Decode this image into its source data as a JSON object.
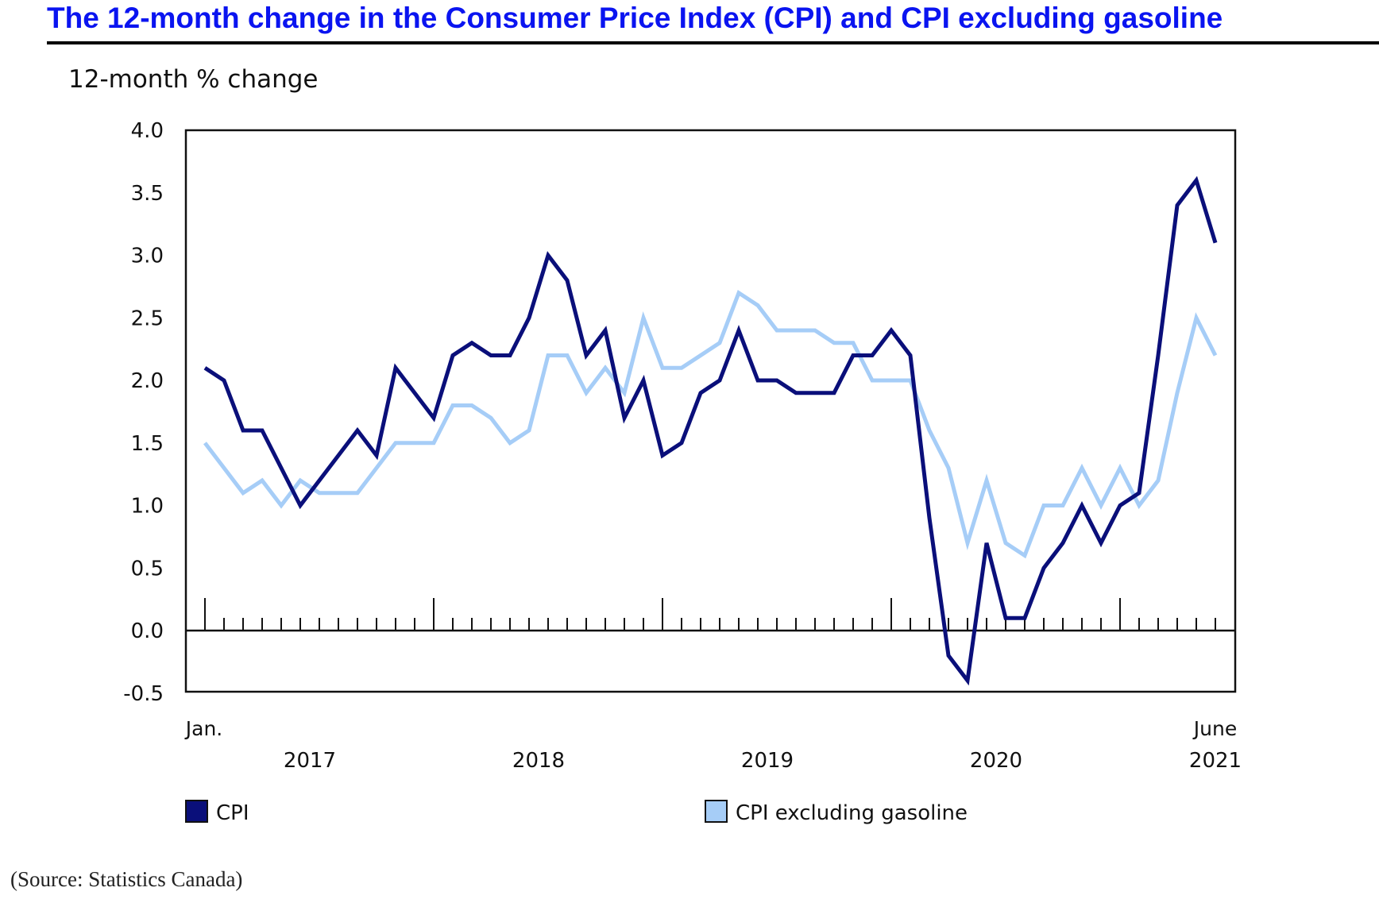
{
  "title": "The 12-month change in the Consumer Price Index (CPI) and CPI excluding gasoline",
  "source": "(Source: Statistics Canada)",
  "chart_data": {
    "type": "line",
    "ylabel": "12-month % change",
    "ylim": [
      -0.5,
      4.0
    ],
    "yticks": [
      "4.0",
      "3.5",
      "3.0",
      "2.5",
      "2.0",
      "1.5",
      "1.0",
      "0.5",
      "0.0",
      "-0.5"
    ],
    "ytick_values": [
      4.0,
      3.5,
      3.0,
      2.5,
      2.0,
      1.5,
      1.0,
      0.5,
      0.0,
      -0.5
    ],
    "x_start": "Jan. 2017",
    "x_end": "June 2021",
    "x_start_label": "Jan.",
    "x_end_label": "June",
    "year_labels": [
      "2017",
      "2018",
      "2019",
      "2020",
      "2021"
    ],
    "legend_position": "bottom",
    "grid": false,
    "series": [
      {
        "name": "CPI",
        "color": "#0a0f7a",
        "values": [
          2.1,
          2.0,
          1.6,
          1.6,
          1.3,
          1.0,
          1.2,
          1.4,
          1.6,
          1.4,
          2.1,
          1.9,
          1.7,
          2.2,
          2.3,
          2.2,
          2.2,
          2.5,
          3.0,
          2.8,
          2.2,
          2.4,
          1.7,
          2.0,
          1.4,
          1.5,
          1.9,
          2.0,
          2.4,
          2.0,
          2.0,
          1.9,
          1.9,
          1.9,
          2.2,
          2.2,
          2.4,
          2.2,
          0.9,
          -0.2,
          -0.4,
          0.7,
          0.1,
          0.1,
          0.5,
          0.7,
          1.0,
          0.7,
          1.0,
          1.1,
          2.2,
          3.4,
          3.6,
          3.1
        ]
      },
      {
        "name": "CPI excluding gasoline",
        "color": "#a6cdf7",
        "values": [
          1.5,
          1.3,
          1.1,
          1.2,
          1.0,
          1.2,
          1.1,
          1.1,
          1.1,
          1.3,
          1.5,
          1.5,
          1.5,
          1.8,
          1.8,
          1.7,
          1.5,
          1.6,
          2.2,
          2.2,
          1.9,
          2.1,
          1.9,
          2.5,
          2.1,
          2.1,
          2.2,
          2.3,
          2.7,
          2.6,
          2.4,
          2.4,
          2.4,
          2.3,
          2.3,
          2.0,
          2.0,
          2.0,
          1.6,
          1.3,
          0.7,
          1.2,
          0.7,
          0.6,
          1.0,
          1.0,
          1.3,
          1.0,
          1.3,
          1.0,
          1.2,
          1.9,
          2.5,
          2.2
        ]
      }
    ]
  }
}
